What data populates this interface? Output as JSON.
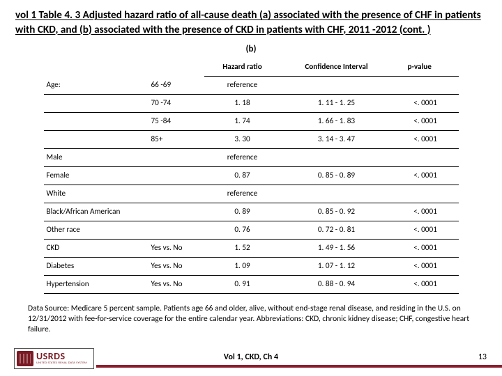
{
  "title": "vol 1 Table 4. 3 Adjusted hazard ratio of all-cause death (a) associated with the presence of CHF in patients with CKD, and (b) associated with the presence of CKD in patients with CHF, 2011 -2012 (cont. )",
  "section_label": "(b)",
  "columns": {
    "blank1": "",
    "blank2": "",
    "hr": "Hazard ratio",
    "ci": "Confidence Interval",
    "p": "p-value"
  },
  "rows": [
    {
      "label": "Age:",
      "sub": "66 -69",
      "hr": "reference",
      "ci": "",
      "p": ""
    },
    {
      "label": "",
      "sub": "70 -74",
      "hr": "1. 18",
      "ci": "1. 11 - 1. 25",
      "p": "<. 0001"
    },
    {
      "label": "",
      "sub": "75 -84",
      "hr": "1. 74",
      "ci": "1. 66 - 1. 83",
      "p": "<. 0001"
    },
    {
      "label": "",
      "sub": "85+",
      "hr": "3. 30",
      "ci": "3. 14 - 3. 47",
      "p": "<. 0001"
    },
    {
      "label": "Male",
      "sub": "",
      "hr": "reference",
      "ci": "",
      "p": ""
    },
    {
      "label": "Female",
      "sub": "",
      "hr": "0. 87",
      "ci": "0. 85 - 0. 89",
      "p": "<. 0001"
    },
    {
      "label": "White",
      "sub": "",
      "hr": "reference",
      "ci": "",
      "p": ""
    },
    {
      "label": "Black/African American",
      "sub": "",
      "hr": "0. 89",
      "ci": "0. 85 - 0. 92",
      "p": "<. 0001"
    },
    {
      "label": "Other race",
      "sub": "",
      "hr": "0. 76",
      "ci": "0. 72 - 0. 81",
      "p": "<. 0001"
    },
    {
      "label": "CKD",
      "sub": "Yes vs. No",
      "hr": "1. 52",
      "ci": "1. 49 - 1. 56",
      "p": "<. 0001"
    },
    {
      "label": "Diabetes",
      "sub": "Yes vs. No",
      "hr": "1. 09",
      "ci": "1. 07 - 1. 12",
      "p": "<. 0001"
    },
    {
      "label": "Hypertension",
      "sub": "Yes vs. No",
      "hr": "0. 91",
      "ci": "0. 88 - 0. 94",
      "p": "<. 0001"
    }
  ],
  "footnote": "Data Source: Medicare 5 percent sample. Patients age 66 and older, alive, without end-stage renal disease, and residing in the U.S. on 12/31/2012 with fee-for-service coverage for the entire calendar year. Abbreviations: CKD, chronic kidney disease; CHF, congestive heart failure.",
  "logo": {
    "acronym": "USRDS",
    "full": "UNITED STATES RENAL DATA SYSTEM"
  },
  "footer_center": "Vol 1, CKD, Ch 4",
  "page_number": "13",
  "colors": {
    "accent": "#8a1e2d"
  }
}
